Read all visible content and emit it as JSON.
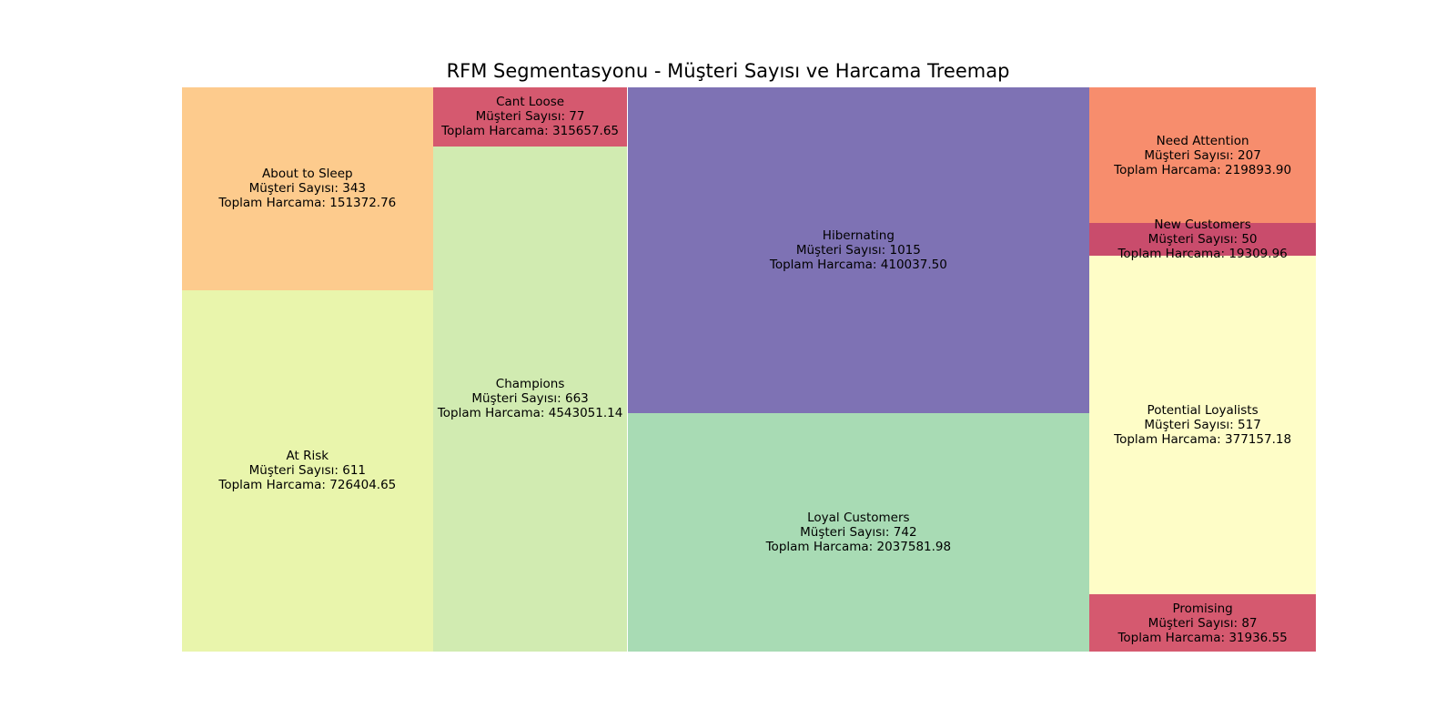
{
  "chart_data": {
    "type": "treemap",
    "title": "RFM Segmentasyonu - Müşteri Sayısı ve Harcama Treemap",
    "count_prefix": "Müşteri Sayısı: ",
    "spend_prefix": "Toplam Harcama: ",
    "segments": [
      {
        "name": "About to Sleep",
        "count": 343,
        "count_text": "343",
        "spend_text": "151372.76",
        "spend": 151372.76,
        "color": "#fdcb8d"
      },
      {
        "name": "At Risk",
        "count": 611,
        "count_text": "611",
        "spend_text": "726404.65",
        "spend": 726404.65,
        "color": "#e9f5ac"
      },
      {
        "name": "Cant Loose",
        "count": 77,
        "count_text": "77",
        "spend_text": "315657.65",
        "spend": 315657.65,
        "color": "#d5596f"
      },
      {
        "name": "Champions",
        "count": 663,
        "count_text": "663",
        "spend_text": "4543051.14",
        "spend": 4543051.14,
        "color": "#d1ebb1"
      },
      {
        "name": "Hibernating",
        "count": 1015,
        "count_text": "1015",
        "spend_text": "410037.50",
        "spend": 410037.5,
        "color": "#7e72b4"
      },
      {
        "name": "Loyal Customers",
        "count": 742,
        "count_text": "742",
        "spend_text": "2037581.98",
        "spend": 2037581.98,
        "color": "#a8dbb4"
      },
      {
        "name": "Need Attention",
        "count": 207,
        "count_text": "207",
        "spend_text": "219893.90",
        "spend": 219893.9,
        "color": "#f78d6d"
      },
      {
        "name": "New Customers",
        "count": 50,
        "count_text": "50",
        "spend_text": "19309.96",
        "spend": 19309.96,
        "color": "#c94c6c"
      },
      {
        "name": "Potential Loyalists",
        "count": 517,
        "count_text": "517",
        "spend_text": "377157.18",
        "spend": 377157.18,
        "color": "#fefdc7"
      },
      {
        "name": "Promising",
        "count": 87,
        "count_text": "87",
        "spend_text": "31936.55",
        "spend": 31936.55,
        "color": "#d5596f"
      }
    ]
  }
}
